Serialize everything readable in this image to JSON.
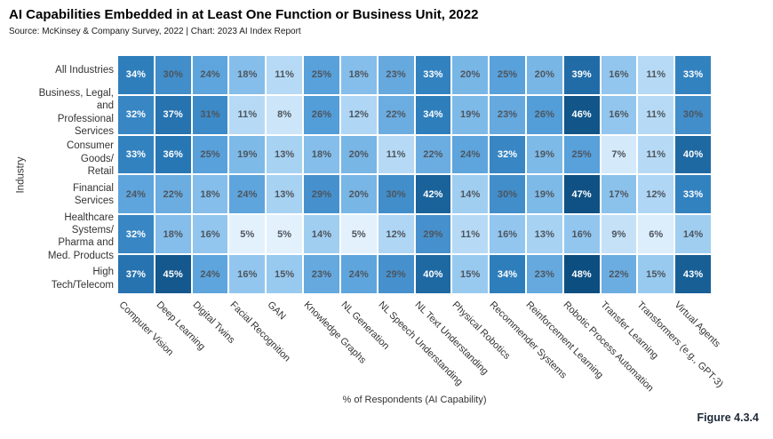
{
  "header": {
    "title": "AI Capabilities Embedded in at Least One Function or Business Unit, 2022",
    "source": "Source: McKinsey & Company Survey, 2022 | Chart: 2023 AI Index Report"
  },
  "figure_label": "Figure 4.3.4",
  "chart_data": {
    "type": "heatmap",
    "title": "AI Capabilities Embedded in at Least One Function or Business Unit, 2022",
    "xlabel": "% of Respondents (AI Capability)",
    "ylabel": "Industry",
    "unit": "%",
    "legend_position": "none",
    "grid": false,
    "columns": [
      "Computer Vision",
      "Deep Learning",
      "Digital Twins",
      "Facial Recognition",
      "GAN",
      "Knowledge Graphs",
      "NL Generation",
      "NL Speech Understanding",
      "NL Text Understanding",
      "Physical Robotics",
      "Recommender Systems",
      "Reinforcement Learning",
      "Robotic Process Automation",
      "Transfer Learning",
      "Transformers (e.g., GPT-3)",
      "Virtual Agents"
    ],
    "rows": [
      {
        "label": "All Industries"
      },
      {
        "label": "Business, Legal, and\nProfessional Services"
      },
      {
        "label": "Consumer Goods/\nRetail"
      },
      {
        "label": "Financial Services"
      },
      {
        "label": "Healthcare Systems/\nPharma and\nMed. Products"
      },
      {
        "label": "High Tech/Telecom"
      }
    ],
    "values": [
      [
        34,
        30,
        24,
        18,
        11,
        25,
        18,
        23,
        33,
        20,
        25,
        20,
        39,
        16,
        11,
        33
      ],
      [
        32,
        37,
        31,
        11,
        8,
        26,
        12,
        22,
        34,
        19,
        23,
        26,
        46,
        16,
        11,
        30
      ],
      [
        33,
        36,
        25,
        19,
        13,
        18,
        20,
        11,
        22,
        24,
        32,
        19,
        25,
        7,
        11,
        40
      ],
      [
        24,
        22,
        18,
        24,
        13,
        29,
        20,
        30,
        42,
        14,
        30,
        19,
        47,
        17,
        12,
        33
      ],
      [
        32,
        18,
        16,
        5,
        5,
        14,
        5,
        12,
        29,
        11,
        16,
        13,
        16,
        9,
        6,
        14
      ],
      [
        37,
        45,
        24,
        16,
        15,
        23,
        24,
        29,
        40,
        15,
        34,
        23,
        48,
        22,
        15,
        43
      ]
    ],
    "colorscale": {
      "min": 5,
      "max": 48,
      "stops": [
        {
          "v": 5,
          "c": "#e3f1fc"
        },
        {
          "v": 15,
          "c": "#98caf0"
        },
        {
          "v": 25,
          "c": "#58a1db"
        },
        {
          "v": 35,
          "c": "#2a7ab9"
        },
        {
          "v": 48,
          "c": "#0d4e80"
        }
      ]
    },
    "white_text_threshold": 32,
    "dark_text_color": "#4e555e",
    "light_text_color": "#ffffff"
  }
}
